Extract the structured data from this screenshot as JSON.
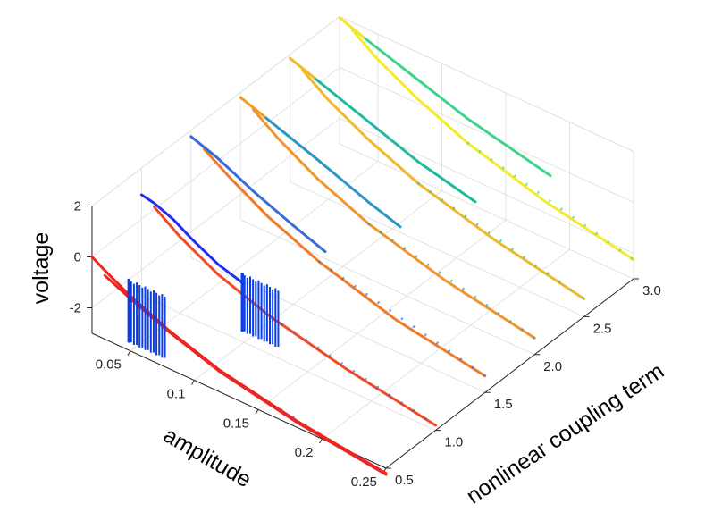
{
  "chart_data": {
    "type": "line",
    "projection": "3d",
    "grid": true,
    "axes": {
      "x": {
        "label": "amplitude",
        "range": [
          0.02,
          0.25
        ],
        "ticks": [
          "0.05",
          "0.1",
          "0.15",
          "0.2",
          "0.25"
        ]
      },
      "y": {
        "label": "nonlinear coupling term",
        "range": [
          0.5,
          3.0
        ],
        "ticks": [
          "0.5",
          "1.0",
          "1.5",
          "2.0",
          "2.5",
          "3.0"
        ]
      },
      "z": {
        "label": "voltage",
        "range": [
          -3,
          2
        ],
        "ticks": [
          "-2",
          "0",
          "2"
        ]
      }
    },
    "series": [
      {
        "coupling": 0.5,
        "upper": [
          [
            0.02,
            0.0
          ],
          [
            0.03,
            -0.3
          ],
          [
            0.05,
            -0.85
          ],
          [
            0.08,
            -1.5
          ],
          [
            0.12,
            -2.15
          ],
          [
            0.18,
            -2.75
          ],
          [
            0.25,
            -3.2
          ]
        ],
        "lower": [
          [
            0.03,
            -0.5
          ],
          [
            0.05,
            -0.95
          ],
          [
            0.08,
            -1.55
          ],
          [
            0.12,
            -2.2
          ],
          [
            0.18,
            -2.8
          ],
          [
            0.25,
            -3.25
          ]
        ],
        "color": "#ee2420",
        "scatter_color": "#3a5bd8",
        "burst": {
          "x": 0.055,
          "ymin": -2.7,
          "ymax": -0.2
        }
      },
      {
        "coupling": 1.0,
        "upper": [
          [
            0.02,
            0.95
          ],
          [
            0.03,
            0.85
          ],
          [
            0.045,
            0.55
          ],
          [
            0.06,
            0.1
          ],
          [
            0.08,
            -0.4
          ],
          [
            0.1,
            -0.7
          ]
        ],
        "lower": [
          [
            0.03,
            0.7
          ],
          [
            0.05,
            0.0
          ],
          [
            0.08,
            -0.8
          ],
          [
            0.12,
            -1.5
          ],
          [
            0.18,
            -2.2
          ],
          [
            0.25,
            -2.8
          ]
        ],
        "color": "#1e2ef2",
        "lower_color": "#f44a23",
        "scatter_color": "#3a5bd8",
        "burst": {
          "x": 0.105,
          "ymin": -2.6,
          "ymax": -0.3
        }
      },
      {
        "coupling": 1.5,
        "upper": [
          [
            0.02,
            1.75
          ],
          [
            0.04,
            1.4
          ],
          [
            0.07,
            0.7
          ],
          [
            0.1,
            0.1
          ],
          [
            0.125,
            -0.35
          ]
        ],
        "lower": [
          [
            0.03,
            1.5
          ],
          [
            0.05,
            0.85
          ],
          [
            0.08,
            0.0
          ],
          [
            0.12,
            -0.85
          ],
          [
            0.18,
            -1.75
          ],
          [
            0.25,
            -2.35
          ]
        ],
        "color": "#3a6bd6",
        "lower_color": "#f07b2a",
        "scatter_color": "#3a6bd6"
      },
      {
        "coupling": 2.0,
        "upper": [
          [
            0.02,
            1.8
          ],
          [
            0.04,
            1.45
          ],
          [
            0.08,
            0.75
          ],
          [
            0.12,
            0.0
          ],
          [
            0.145,
            -0.4
          ]
        ],
        "lower": [
          [
            0.03,
            1.55
          ],
          [
            0.05,
            0.85
          ],
          [
            0.08,
            0.0
          ],
          [
            0.12,
            -0.85
          ],
          [
            0.18,
            -1.7
          ],
          [
            0.25,
            -2.35
          ]
        ],
        "color": "#f39a22",
        "mid_color": "#2e96c4",
        "lower_color": "#f0962c",
        "scatter_color": "#2e96c4"
      },
      {
        "coupling": 2.5,
        "upper": [
          [
            0.02,
            1.85
          ],
          [
            0.04,
            1.5
          ],
          [
            0.08,
            0.8
          ],
          [
            0.12,
            0.1
          ],
          [
            0.165,
            -0.45
          ]
        ],
        "lower": [
          [
            0.03,
            1.6
          ],
          [
            0.05,
            0.9
          ],
          [
            0.08,
            0.1
          ],
          [
            0.12,
            -0.75
          ],
          [
            0.18,
            -1.6
          ],
          [
            0.25,
            -2.3
          ]
        ],
        "color": "#f0b92a",
        "mid_color": "#1fb9a0",
        "lower_color": "#f0b92a",
        "scatter_color": "#23c0a0"
      },
      {
        "coupling": 3.0,
        "upper": [
          [
            0.02,
            1.95
          ],
          [
            0.04,
            1.6
          ],
          [
            0.08,
            0.95
          ],
          [
            0.12,
            0.3
          ],
          [
            0.185,
            -0.45
          ]
        ],
        "lower": [
          [
            0.03,
            1.7
          ],
          [
            0.05,
            1.0
          ],
          [
            0.08,
            0.2
          ],
          [
            0.12,
            -0.65
          ],
          [
            0.18,
            -1.55
          ],
          [
            0.25,
            -2.25
          ]
        ],
        "color": "#f4e52c",
        "mid_color": "#3cd48a",
        "lower_color": "#f4ec2a",
        "scatter_color": "#3cd48a"
      }
    ]
  }
}
